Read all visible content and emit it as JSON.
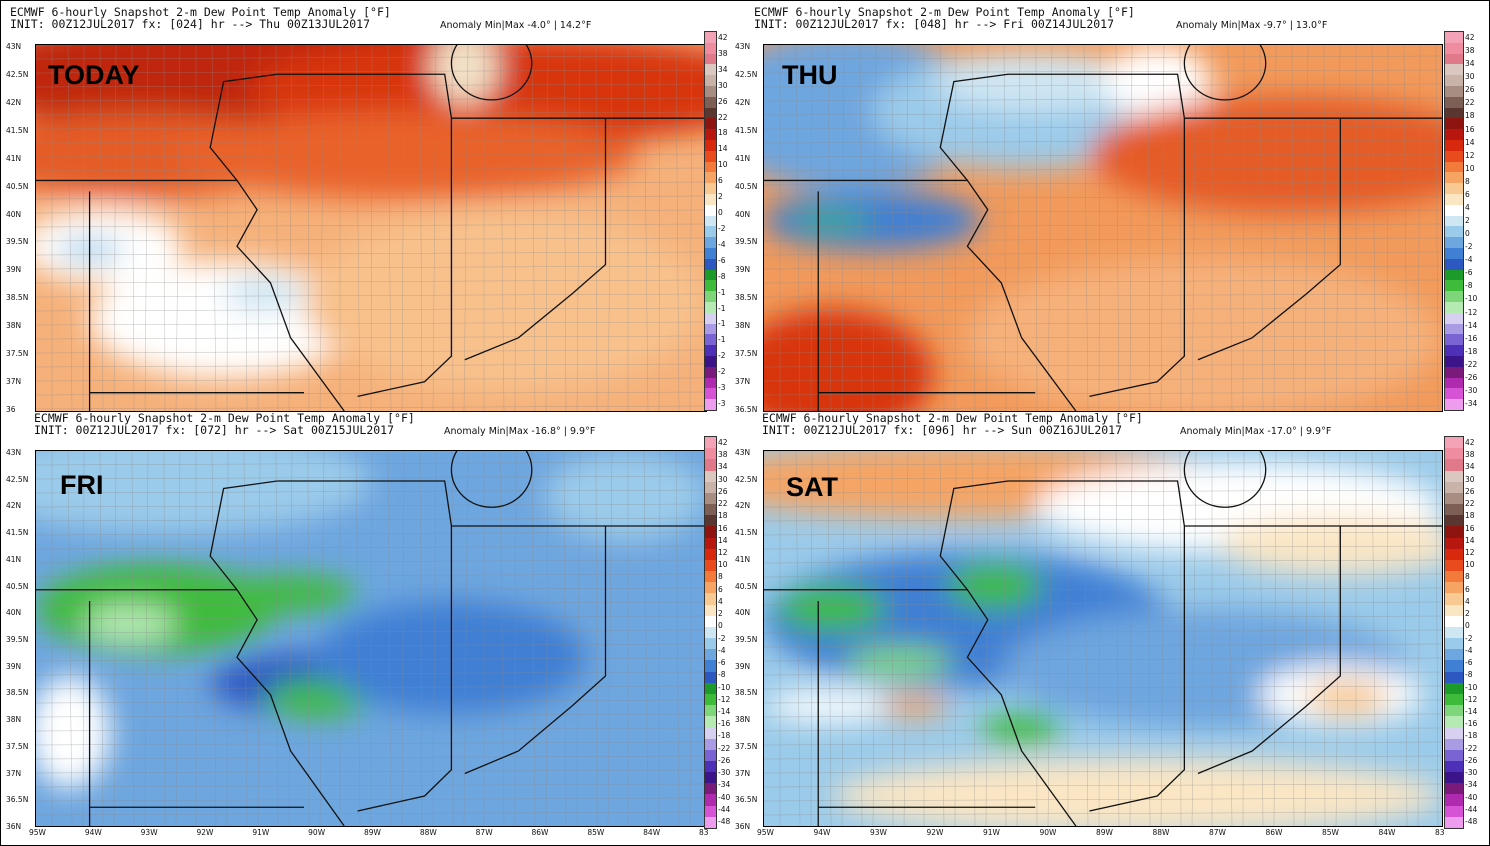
{
  "panels": [
    {
      "title_line": "ECMWF 6-hourly Snapshot 2-m Dew Point Temp Anomaly [°F]",
      "init_line": "INIT: 00Z12JUL2017 fx: [024] hr --> Thu 00Z13JUL2017",
      "minmax": "Anomaly Min|Max -4.0° | 14.2°F",
      "label": "TODAY",
      "theme": "warm",
      "y_labels": [
        "43N",
        "42.5N",
        "42N",
        "41.5N",
        "41N",
        "40.5N",
        "40N",
        "39.5N",
        "39N",
        "38.5N",
        "38N",
        "37.5N",
        "37N",
        "36"
      ],
      "x_labels": [],
      "colorbar_labels": [
        "42",
        "38",
        "34",
        "30",
        "26",
        "22",
        "18",
        "14",
        "10",
        "6",
        "2",
        "0",
        "-2",
        "-4",
        "-6",
        "-8",
        "-1",
        "-1",
        "-1",
        "-1",
        "-2",
        "-2",
        "-3",
        "-3"
      ]
    },
    {
      "title_line": "ECMWF 6-hourly Snapshot 2-m Dew Point Temp Anomaly [°F]",
      "init_line": "INIT: 00Z12JUL2017 fx: [048] hr --> Fri 00Z14JUL2017",
      "minmax": "Anomaly Min|Max -9.7° | 13.0°F",
      "label": "THU",
      "theme": "warm2",
      "y_labels": [
        "43N",
        "42.5N",
        "42N",
        "41.5N",
        "41N",
        "40.5N",
        "40N",
        "39.5N",
        "39N",
        "38.5N",
        "38N",
        "37.5N",
        "37N",
        "36.5N"
      ],
      "x_labels": [],
      "colorbar_labels": [
        "42",
        "38",
        "34",
        "30",
        "26",
        "22",
        "18",
        "16",
        "14",
        "12",
        "10",
        "8",
        "6",
        "4",
        "2",
        "0",
        "-2",
        "-4",
        "-6",
        "-8",
        "-10",
        "-12",
        "-14",
        "-16",
        "-18",
        "-22",
        "-26",
        "-30",
        "-34"
      ]
    },
    {
      "title_line": "ECMWF 6-hourly Snapshot 2-m Dew Point Temp Anomaly [°F]",
      "init_line": "INIT: 00Z12JUL2017 fx: [072] hr --> Sat 00Z15JUL2017",
      "minmax": "Anomaly Min|Max -16.8° | 9.9°F",
      "label": "FRI",
      "theme": "cool",
      "y_labels": [
        "43N",
        "42.5N",
        "42N",
        "41.5N",
        "41N",
        "40.5N",
        "40N",
        "39.5N",
        "39N",
        "38.5N",
        "38N",
        "37.5N",
        "37N",
        "36.5N",
        "36N"
      ],
      "x_labels": [
        "95W",
        "94W",
        "93W",
        "92W",
        "91W",
        "90W",
        "89W",
        "88W",
        "87W",
        "86W",
        "85W",
        "84W",
        "83"
      ],
      "colorbar_labels": [
        "42",
        "38",
        "34",
        "30",
        "26",
        "22",
        "18",
        "16",
        "14",
        "12",
        "10",
        "8",
        "6",
        "4",
        "2",
        "0",
        "-2",
        "-4",
        "-6",
        "-8",
        "-10",
        "-12",
        "-14",
        "-16",
        "-18",
        "-22",
        "-26",
        "-30",
        "-34",
        "-40",
        "-44",
        "-48"
      ]
    },
    {
      "title_line": "ECMWF 6-hourly Snapshot 2-m Dew Point Temp Anomaly [°F]",
      "init_line": "INIT: 00Z12JUL2017 fx: [096] hr --> Sun 00Z16JUL2017",
      "minmax": "Anomaly Min|Max -17.0° | 9.9°F",
      "label": "SAT",
      "theme": "cool2",
      "y_labels": [
        "43N",
        "42.5N",
        "42N",
        "41.5N",
        "41N",
        "40.5N",
        "40N",
        "39.5N",
        "39N",
        "38.5N",
        "38N",
        "37.5N",
        "37N",
        "36.5N",
        "36N"
      ],
      "x_labels": [
        "95W",
        "94W",
        "93W",
        "92W",
        "91W",
        "90W",
        "89W",
        "88W",
        "87W",
        "86W",
        "85W",
        "84W",
        "83"
      ],
      "colorbar_labels": [
        "42",
        "38",
        "34",
        "30",
        "26",
        "22",
        "18",
        "16",
        "14",
        "12",
        "10",
        "8",
        "6",
        "4",
        "2",
        "0",
        "-2",
        "-4",
        "-6",
        "-8",
        "-10",
        "-12",
        "-14",
        "-16",
        "-18",
        "-22",
        "-26",
        "-30",
        "-34",
        "-40",
        "-44",
        "-48"
      ]
    }
  ]
}
